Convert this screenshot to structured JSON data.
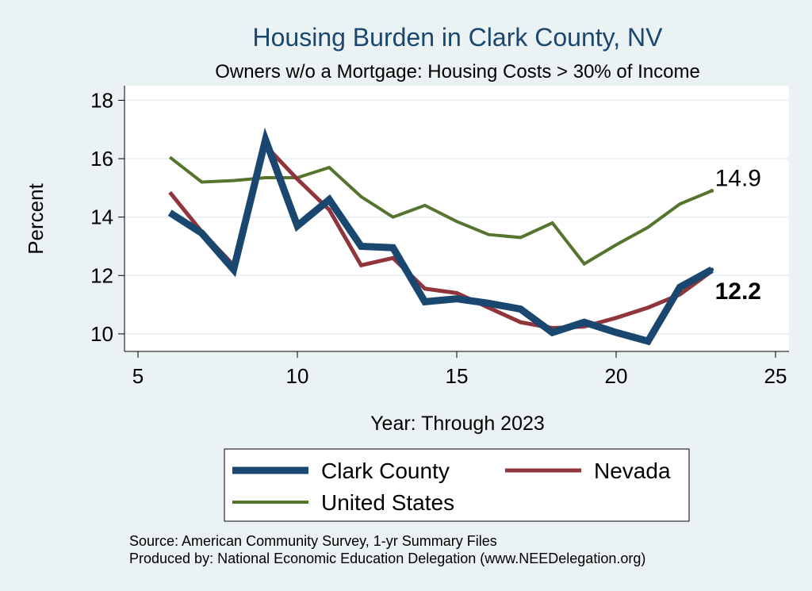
{
  "chart_data": {
    "type": "line",
    "title": "Housing Burden in Clark County, NV",
    "subtitle": "Owners w/o a Mortgage: Housing Costs > 30% of Income",
    "xlabel": "Year: Through 2023",
    "ylabel": "Percent",
    "xlim": [
      5,
      25
    ],
    "ylim": [
      9.4,
      18.5
    ],
    "x_ticks": [
      5,
      10,
      15,
      20,
      25
    ],
    "y_ticks": [
      10,
      12,
      14,
      16,
      18
    ],
    "grid": "horizontal",
    "legend_position": "bottom",
    "x": [
      6,
      7,
      8,
      9,
      10,
      11,
      12,
      13,
      14,
      15,
      16,
      17,
      18,
      19,
      20,
      21,
      22,
      23
    ],
    "series": [
      {
        "name": "Clark County",
        "color": "#1a476f",
        "values": [
          14.15,
          13.45,
          12.2,
          16.65,
          13.7,
          14.6,
          13.0,
          12.95,
          11.1,
          11.2,
          11.05,
          10.85,
          10.05,
          10.4,
          10.05,
          9.75,
          11.6,
          12.2
        ]
      },
      {
        "name": "Nevada",
        "color": "#90353b",
        "values": [
          14.85,
          13.5,
          12.35,
          16.45,
          15.3,
          14.25,
          12.35,
          12.6,
          11.55,
          11.4,
          10.9,
          10.4,
          10.2,
          10.25,
          10.55,
          10.9,
          11.35,
          12.15
        ]
      },
      {
        "name": "United States",
        "color": "#55752f",
        "values": [
          16.05,
          15.2,
          15.25,
          15.35,
          15.35,
          15.7,
          14.7,
          14.0,
          14.4,
          13.85,
          13.4,
          13.3,
          13.8,
          12.4,
          13.05,
          13.65,
          14.45,
          14.9
        ]
      }
    ],
    "end_labels": [
      {
        "series": "United States",
        "text": "14.9"
      },
      {
        "series": "Clark County",
        "text": "12.2"
      }
    ],
    "source_note": "Source: American Community Survey, 1-yr Summary Files",
    "producer_note": "Produced by: National Economic Education Delegation (www.NEEDelegation.org)"
  }
}
